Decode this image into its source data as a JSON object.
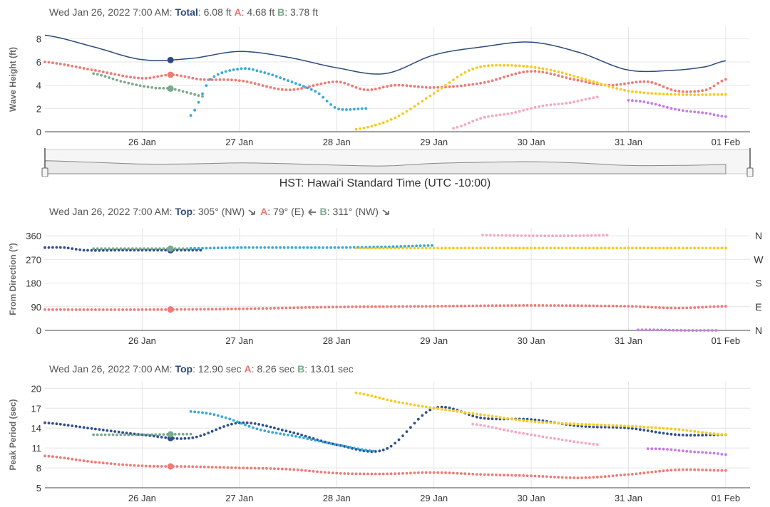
{
  "timezone_label": "HST: Hawai'i Standard Time (UTC -10:00)",
  "colors": {
    "total": "#2c4a7a",
    "a": "#ef7a74",
    "b": "#7aab8c",
    "cyan": "#35aad6",
    "yellow": "#f5cb1f",
    "pink": "#f3a9c3",
    "purple": "#c67ae8",
    "navy": "#2f4f8f"
  },
  "x_axis": {
    "range": [
      "2022-01-25T00:00",
      "2022-02-01T06:00"
    ],
    "ticks": [
      "26 Jan",
      "27 Jan",
      "28 Jan",
      "29 Jan",
      "30 Jan",
      "31 Jan",
      "01 Feb"
    ],
    "cursor": "2022-01-26T07:00"
  },
  "wave": {
    "readout": {
      "date": "Wed Jan 26, 2022",
      "time": "7:00 AM:",
      "top_label": "Total",
      "top_value": ": 6.08 ft",
      "a_label": "A",
      "a_value": ": 4.68 ft",
      "b_label": "B",
      "b_value": ": 3.78 ft"
    },
    "ylabel": "Wave Height (ft)",
    "yticks": [
      "0",
      "2",
      "4",
      "6",
      "8"
    ]
  },
  "direction": {
    "readout": {
      "date": "Wed Jan 26, 2022",
      "time": "7:00 AM:",
      "top_label": "Top",
      "top_value": ": 305° (NW)",
      "a_label": "A",
      "a_value": ": 79° (E)",
      "b_label": "B",
      "b_value": ": 311° (NW)"
    },
    "ylabel": "From Direction (°)",
    "yticks": [
      "0",
      "90",
      "180",
      "270",
      "360"
    ],
    "compass": [
      "N",
      "E",
      "S",
      "W",
      "N"
    ]
  },
  "period": {
    "readout": {
      "date": "Wed Jan 26, 2022",
      "time": "7:00 AM:",
      "top_label": "Top",
      "top_value": ": 12.90 sec",
      "a_label": "A",
      "a_value": ": 8.26 sec",
      "b_label": "B",
      "b_value": ": 13.01 sec"
    },
    "ylabel": "Peak Period (sec)",
    "yticks": [
      "5",
      "8",
      "11",
      "14",
      "17",
      "20"
    ]
  },
  "chart_data": [
    {
      "type": "line",
      "ylabel": "Wave Height (ft)",
      "ylim": [
        0,
        9
      ],
      "series": [
        {
          "key": "total",
          "style": "line",
          "x": [
            0,
            0.5,
            1,
            1.5,
            2,
            2.5,
            3,
            3.5,
            4,
            4.5,
            5,
            5.5,
            6,
            6.5,
            6.8,
            7
          ],
          "y": [
            8.3,
            7.3,
            6.2,
            6.3,
            6.9,
            6.4,
            5.5,
            5.0,
            6.6,
            7.3,
            7.7,
            6.8,
            5.3,
            5.3,
            5.6,
            6.1
          ]
        },
        {
          "key": "a",
          "style": "dots",
          "x": [
            0,
            0.5,
            1,
            1.3,
            1.6,
            2,
            2.5,
            3,
            3.3,
            3.6,
            4,
            4.5,
            5,
            5.5,
            5.8,
            6.2,
            6.5,
            6.8,
            7
          ],
          "y": [
            6.0,
            5.3,
            4.6,
            4.9,
            4.5,
            4.4,
            3.6,
            4.3,
            3.6,
            4.0,
            3.8,
            4.2,
            5.2,
            4.4,
            4.0,
            4.3,
            3.5,
            3.6,
            4.5
          ]
        },
        {
          "key": "b",
          "style": "dots",
          "x": [
            0.5,
            0.8,
            1.1,
            1.3,
            1.5,
            1.65
          ],
          "y": [
            5.0,
            4.3,
            3.8,
            3.7,
            3.3,
            3.0
          ]
        },
        {
          "key": "cyan",
          "style": "dots",
          "x": [
            1.5,
            1.7,
            2,
            2.2,
            2.5,
            2.8,
            3,
            3.3
          ],
          "y": [
            1.4,
            4.5,
            5.4,
            5.2,
            4.4,
            3.4,
            2.0,
            2.0
          ]
        },
        {
          "key": "yellow",
          "style": "dots",
          "x": [
            3.2,
            3.6,
            4,
            4.4,
            4.8,
            5.2,
            5.6,
            6,
            6.5,
            7
          ],
          "y": [
            0.2,
            1.2,
            3.3,
            5.4,
            5.7,
            5.3,
            4.4,
            3.5,
            3.2,
            3.2
          ]
        },
        {
          "key": "pink",
          "style": "dots",
          "x": [
            4.2,
            4.5,
            4.8,
            5.1,
            5.4,
            5.7
          ],
          "y": [
            0.3,
            1.2,
            1.6,
            2.2,
            2.5,
            3.0
          ]
        },
        {
          "key": "purple",
          "style": "dots",
          "x": [
            6.0,
            6.2,
            6.5,
            6.8,
            7.0
          ],
          "y": [
            2.7,
            2.5,
            1.9,
            1.6,
            1.3
          ]
        }
      ]
    },
    {
      "type": "scatter",
      "ylabel": "From Direction (°)",
      "ylim": [
        0,
        390
      ],
      "series": [
        {
          "key": "navy",
          "style": "dots",
          "x": [
            0,
            0.2,
            0.4,
            0.8,
            1.2,
            1.6
          ],
          "y": [
            315,
            315,
            305,
            305,
            305,
            305
          ]
        },
        {
          "key": "b",
          "style": "dots",
          "x": [
            0.5,
            1.0,
            1.6
          ],
          "y": [
            311,
            311,
            311
          ]
        },
        {
          "key": "cyan",
          "style": "dots",
          "x": [
            1.5,
            2,
            2.5,
            3,
            3.5,
            4
          ],
          "y": [
            312,
            315,
            315,
            315,
            318,
            323
          ]
        },
        {
          "key": "yellow",
          "style": "dots",
          "x": [
            3.2,
            4,
            5,
            6,
            7
          ],
          "y": [
            313,
            313,
            313,
            313,
            313
          ]
        },
        {
          "key": "pink",
          "style": "dots",
          "x": [
            4.5,
            5,
            5.5,
            5.8
          ],
          "y": [
            362,
            360,
            360,
            362
          ]
        },
        {
          "key": "a",
          "style": "dots",
          "x": [
            0,
            1,
            2,
            3,
            4,
            5,
            6,
            6.5,
            7
          ],
          "y": [
            79,
            79,
            82,
            89,
            92,
            95,
            92,
            85,
            92
          ]
        },
        {
          "key": "purple",
          "style": "dots",
          "x": [
            6.1,
            6.3,
            6.6,
            6.9
          ],
          "y": [
            2,
            2,
            0,
            0
          ]
        }
      ]
    },
    {
      "type": "scatter",
      "ylabel": "Peak Period (sec)",
      "ylim": [
        5,
        21
      ],
      "series": [
        {
          "key": "a",
          "style": "dots",
          "x": [
            0,
            0.5,
            1,
            1.5,
            2,
            2.5,
            3,
            3.5,
            4,
            4.5,
            5,
            5.5,
            6,
            6.5,
            7
          ],
          "y": [
            9.8,
            8.9,
            8.3,
            8.2,
            8.0,
            7.8,
            7.2,
            7.1,
            7.3,
            7.0,
            6.8,
            6.5,
            7.0,
            7.7,
            7.6
          ]
        },
        {
          "key": "navy",
          "style": "dots",
          "x": [
            0,
            0.5,
            1,
            1.5,
            2,
            2.5,
            3,
            3.5,
            4,
            4.5,
            5,
            5.5,
            6,
            6.5,
            7
          ],
          "y": [
            14.8,
            13.9,
            13.0,
            12.5,
            14.8,
            13.5,
            11.5,
            10.8,
            17.0,
            15.5,
            15.3,
            14.3,
            14.0,
            13.0,
            13.0
          ]
        },
        {
          "key": "b",
          "style": "dots",
          "x": [
            0.5,
            1,
            1.5
          ],
          "y": [
            13.0,
            13.0,
            13.1
          ]
        },
        {
          "key": "cyan",
          "style": "dots",
          "x": [
            1.5,
            1.8,
            2.2,
            2.6,
            3,
            3.4
          ],
          "y": [
            16.5,
            15.8,
            13.8,
            12.7,
            11.5,
            10.5
          ]
        },
        {
          "key": "yellow",
          "style": "dots",
          "x": [
            3.2,
            3.6,
            4,
            4.5,
            5,
            5.5,
            6,
            6.5,
            7
          ],
          "y": [
            19.3,
            18.0,
            17.0,
            16.0,
            15.0,
            14.6,
            14.3,
            13.8,
            13.0
          ]
        },
        {
          "key": "pink",
          "style": "dots",
          "x": [
            4.4,
            4.8,
            5.2,
            5.7
          ],
          "y": [
            14.6,
            13.5,
            12.5,
            11.5
          ]
        },
        {
          "key": "purple",
          "style": "dots",
          "x": [
            6.2,
            6.4,
            6.6,
            6.9,
            7.0
          ],
          "y": [
            10.9,
            10.8,
            10.5,
            10.2,
            10.0
          ]
        }
      ]
    }
  ]
}
